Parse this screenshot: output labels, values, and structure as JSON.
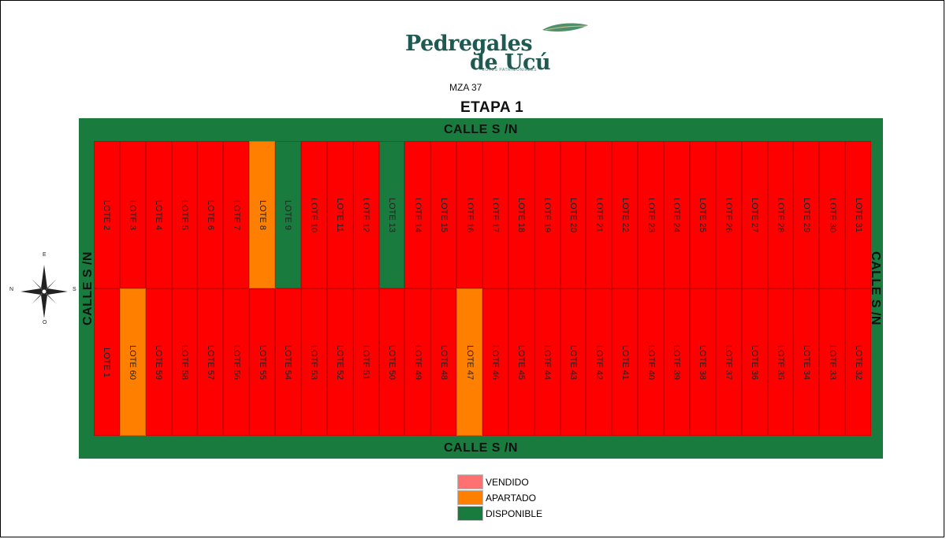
{
  "logo": {
    "line1": "Pedregales",
    "line2": "de Ucú",
    "tagline": "LOTES PATRIMONIALES"
  },
  "header": {
    "manzana": "MZA 37",
    "etapa": "ETAPA 1"
  },
  "streets": {
    "top": "CALLE S /N",
    "bottom": "CALLE S /N",
    "left": "CALLE S /N",
    "right": "CALLE S /N"
  },
  "compass": {
    "n": "N",
    "s": "S",
    "e": "E",
    "o": "O"
  },
  "colors": {
    "vendido": "#ff0000",
    "apartado": "#ff8000",
    "disponible": "#1a7b3f"
  },
  "lots_top": [
    {
      "label": "LOTE 2",
      "status": "vendido"
    },
    {
      "label": "LOTE 3",
      "status": "vendido"
    },
    {
      "label": "LOTE 4",
      "status": "vendido"
    },
    {
      "label": "LOTE 5",
      "status": "vendido"
    },
    {
      "label": "LOTE 6",
      "status": "vendido"
    },
    {
      "label": "LOTE 7",
      "status": "vendido"
    },
    {
      "label": "LOTE 8",
      "status": "apartado"
    },
    {
      "label": "LOTE 9",
      "status": "disponible"
    },
    {
      "label": "LOTE 10",
      "status": "vendido"
    },
    {
      "label": "LOTE 11",
      "status": "vendido"
    },
    {
      "label": "LOTE 12",
      "status": "vendido"
    },
    {
      "label": "LOTE 13",
      "status": "disponible"
    },
    {
      "label": "LOTE 14",
      "status": "vendido"
    },
    {
      "label": "LOTE 15",
      "status": "vendido"
    },
    {
      "label": "LOTE 16",
      "status": "vendido"
    },
    {
      "label": "LOTE 17",
      "status": "vendido"
    },
    {
      "label": "LOTE 18",
      "status": "vendido"
    },
    {
      "label": "LOTE 19",
      "status": "vendido"
    },
    {
      "label": "LOTE 20",
      "status": "vendido"
    },
    {
      "label": "LOTE 21",
      "status": "vendido"
    },
    {
      "label": "LOTE 22",
      "status": "vendido"
    },
    {
      "label": "LOTE 23",
      "status": "vendido"
    },
    {
      "label": "LOTE 24",
      "status": "vendido"
    },
    {
      "label": "LOTE 25",
      "status": "vendido"
    },
    {
      "label": "LOTE 26",
      "status": "vendido"
    },
    {
      "label": "LOTE 27",
      "status": "vendido"
    },
    {
      "label": "LOTE 28",
      "status": "vendido"
    },
    {
      "label": "LOTE 29",
      "status": "vendido"
    },
    {
      "label": "LOTE 30",
      "status": "vendido"
    },
    {
      "label": "LOTE 31",
      "status": "vendido"
    }
  ],
  "lots_bottom": [
    {
      "label": "LOTE 1",
      "status": "vendido"
    },
    {
      "label": "LOTE 60",
      "status": "apartado"
    },
    {
      "label": "LOTE 59",
      "status": "vendido"
    },
    {
      "label": "LOTE 58",
      "status": "vendido"
    },
    {
      "label": "LOTE 57",
      "status": "vendido"
    },
    {
      "label": "LOTE 56",
      "status": "vendido"
    },
    {
      "label": "LOTE 55",
      "status": "vendido"
    },
    {
      "label": "LOTE 54",
      "status": "vendido"
    },
    {
      "label": "LOTE 53",
      "status": "vendido"
    },
    {
      "label": "LOTE 52",
      "status": "vendido"
    },
    {
      "label": "LOTE 51",
      "status": "vendido"
    },
    {
      "label": "LOTE 50",
      "status": "vendido"
    },
    {
      "label": "LOTE 49",
      "status": "vendido"
    },
    {
      "label": "LOTE 48",
      "status": "vendido"
    },
    {
      "label": "LOTE 47",
      "status": "apartado"
    },
    {
      "label": "LOTE 46",
      "status": "vendido"
    },
    {
      "label": "LOTE 45",
      "status": "vendido"
    },
    {
      "label": "LOTE 44",
      "status": "vendido"
    },
    {
      "label": "LOTE 43",
      "status": "vendido"
    },
    {
      "label": "LOTE 42",
      "status": "vendido"
    },
    {
      "label": "LOTE 41",
      "status": "vendido"
    },
    {
      "label": "LOTE 40",
      "status": "vendido"
    },
    {
      "label": "LOTE 39",
      "status": "vendido"
    },
    {
      "label": "LOTE 38",
      "status": "vendido"
    },
    {
      "label": "LOTE 37",
      "status": "vendido"
    },
    {
      "label": "LOTE 36",
      "status": "vendido"
    },
    {
      "label": "LOTE 35",
      "status": "vendido"
    },
    {
      "label": "LOTE 34",
      "status": "vendido"
    },
    {
      "label": "LOTE 33",
      "status": "vendido"
    },
    {
      "label": "LOTE 32",
      "status": "vendido"
    }
  ],
  "legend": [
    {
      "label": "VENDIDO",
      "color": "#ff7070"
    },
    {
      "label": "APARTADO",
      "color": "#ff8000"
    },
    {
      "label": "DISPONIBLE",
      "color": "#1a7b3f"
    }
  ]
}
